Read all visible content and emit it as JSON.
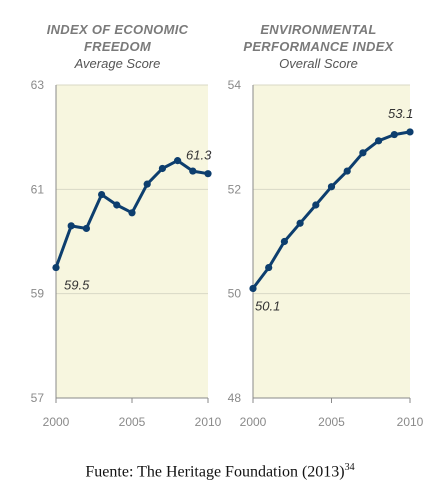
{
  "chart_data": [
    {
      "type": "line",
      "title": "INDEX OF ECONOMIC FREEDOM",
      "subtitle": "Average Score",
      "x": [
        2000,
        2001,
        2002,
        2003,
        2004,
        2005,
        2006,
        2007,
        2008,
        2009,
        2010
      ],
      "series": [
        {
          "values": [
            59.5,
            60.3,
            60.25,
            60.9,
            60.7,
            60.55,
            61.1,
            61.4,
            61.55,
            61.35,
            61.3
          ]
        }
      ],
      "xticks": [
        "2000",
        "2005",
        "2010"
      ],
      "yticks": [
        "57",
        "59",
        "61",
        "63"
      ],
      "xlim": [
        2000,
        2010
      ],
      "ylim": [
        57,
        63
      ],
      "grid": true,
      "annotations": [
        {
          "x": 2000,
          "y": 59.5,
          "text": "59.5"
        },
        {
          "x": 2010,
          "y": 61.3,
          "text": "61.3"
        }
      ],
      "colors": {
        "line": "#0d3e6e",
        "background": "#f7f6df",
        "grid": "#d9d8c6",
        "axis": "#8a8a8a"
      }
    },
    {
      "type": "line",
      "title": "ENVIRONMENTAL PERFORMANCE INDEX",
      "subtitle": "Overall Score",
      "x": [
        2000,
        2001,
        2002,
        2003,
        2004,
        2005,
        2006,
        2007,
        2008,
        2009,
        2010
      ],
      "series": [
        {
          "values": [
            50.1,
            50.5,
            51.0,
            51.35,
            51.7,
            52.05,
            52.35,
            52.7,
            52.93,
            53.05,
            53.1
          ]
        }
      ],
      "xticks": [
        "2000",
        "2005",
        "2010"
      ],
      "yticks": [
        "48",
        "50",
        "52",
        "54"
      ],
      "xlim": [
        2000,
        2010
      ],
      "ylim": [
        48,
        54
      ],
      "grid": true,
      "annotations": [
        {
          "x": 2000,
          "y": 50.1,
          "text": "50.1"
        },
        {
          "x": 2010,
          "y": 53.1,
          "text": "53.1"
        }
      ],
      "colors": {
        "line": "#0d3e6e",
        "background": "#f7f6df",
        "grid": "#d9d8c6",
        "axis": "#8a8a8a"
      }
    }
  ],
  "source": {
    "text": "Fuente: The Heritage Foundation (2013)",
    "note": "34"
  }
}
